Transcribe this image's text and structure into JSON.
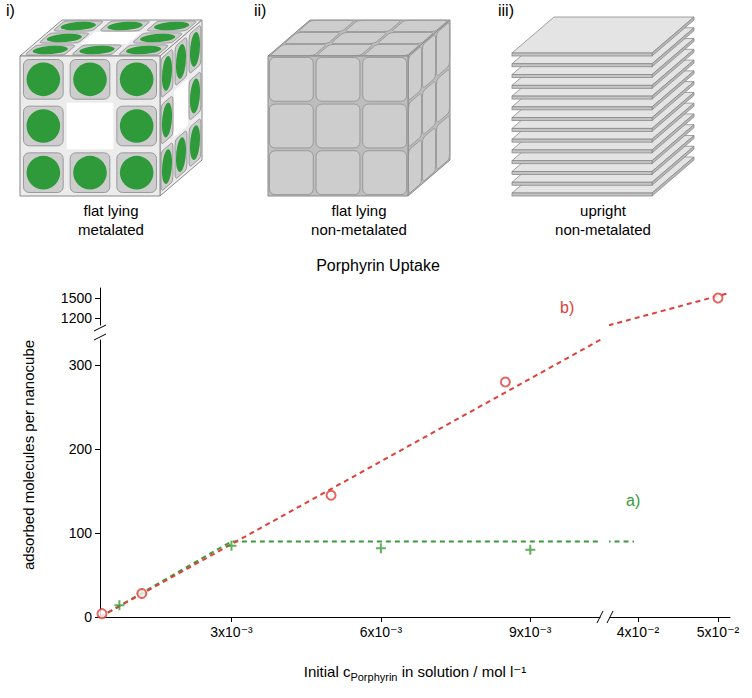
{
  "panels": [
    {
      "label": "i)",
      "caption": [
        "flat lying",
        "metalated"
      ]
    },
    {
      "label": "ii)",
      "caption": [
        "flat lying",
        "non-metalated"
      ]
    },
    {
      "label": "iii)",
      "caption": [
        "upright",
        "non-metalated"
      ]
    }
  ],
  "chart_data": {
    "type": "scatter",
    "title": "Porphyrin Uptake",
    "x_label": {
      "text": "Initial c",
      "subscript": "Porphyrin",
      "after": " in solution / mol l⁻¹"
    },
    "y_label": "adsorbed molecules per nanocube",
    "xlim": [
      0.00036,
      0.0515
    ],
    "x_break": [
      0.0104,
      0.0365
    ],
    "xticks": [
      {
        "value": 0.003,
        "label": "3x10⁻³"
      },
      {
        "value": 0.006,
        "label": "6x10⁻³"
      },
      {
        "value": 0.009,
        "label": "9x10⁻³"
      },
      {
        "value": 0.04,
        "label": "4x10⁻²"
      },
      {
        "value": 0.05,
        "label": "5x10⁻²"
      }
    ],
    "ylim": [
      0,
      1650
    ],
    "y_break": [
      330,
      1100
    ],
    "yticks": [
      0,
      100,
      200,
      300,
      1200,
      1500
    ],
    "grid": false,
    "series": [
      {
        "name": "a)",
        "color": "#3a9a3a",
        "marker": "plus",
        "line_style": "dashed",
        "x": [
          0.00075,
          0.0012,
          0.003,
          0.006,
          0.009
        ],
        "values": [
          14,
          28,
          85,
          82,
          80
        ],
        "fit_x": [
          0.00036,
          0.003,
          0.0395
        ],
        "fit_values": [
          0,
          90,
          90
        ]
      },
      {
        "name": "b)",
        "color": "#e0403a",
        "marker": "circle",
        "line_style": "dashed",
        "x": [
          0.0004,
          0.0012,
          0.005,
          0.0085,
          0.05
        ],
        "values": [
          4,
          28,
          145,
          280,
          1500
        ],
        "fit_x": [
          0.00036,
          0.0104,
          0.0365,
          0.0515
        ],
        "fit_values": [
          0,
          330,
          1100,
          1580
        ]
      }
    ]
  }
}
